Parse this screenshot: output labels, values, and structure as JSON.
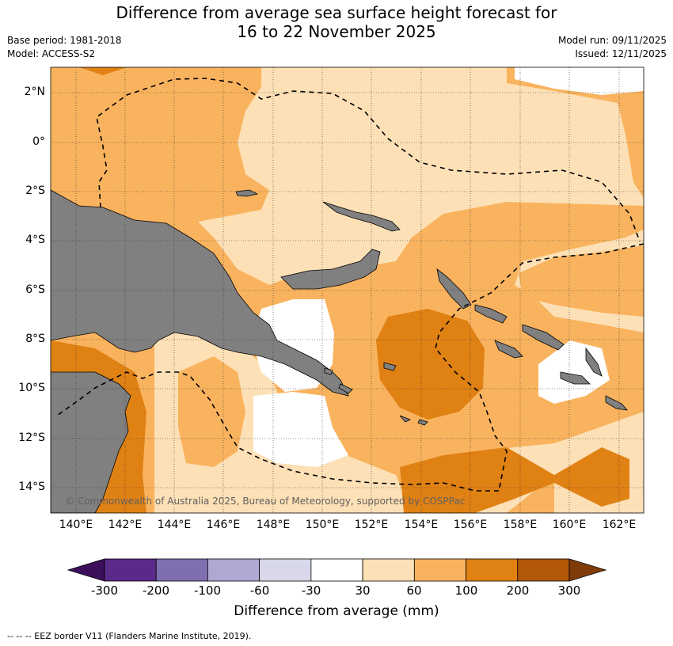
{
  "title_line1": "Difference from average sea surface height forecast for",
  "title_line2": "16 to 22 November 2025",
  "base_period": "Base period: 1981-2018",
  "model": "Model: ACCESS-S2",
  "model_run": "Model run: 09/11/2025",
  "issued": "Issued: 12/11/2025",
  "copyright": "© Commonwealth of Australia 2025, Bureau of Meteorology, supported by COSPPac",
  "lat_labels": [
    "2°N",
    "0°",
    "2°S",
    "4°S",
    "6°S",
    "8°S",
    "10°S",
    "12°S",
    "14°S"
  ],
  "lon_labels": [
    "140°E",
    "142°E",
    "144°E",
    "146°E",
    "148°E",
    "150°E",
    "152°E",
    "154°E",
    "156°E",
    "158°E",
    "160°E",
    "162°E"
  ],
  "colorbar": {
    "label": "Difference from average (mm)",
    "ticks": [
      "-300",
      "-200",
      "-100",
      "-60",
      "-30",
      "30",
      "60",
      "100",
      "200",
      "300"
    ],
    "colors": [
      "#3b0f5a",
      "#5a2a8a",
      "#7f6fb0",
      "#b0a8d2",
      "#d8d8ea",
      "#ffffff",
      "#fde0b6",
      "#f9b35e",
      "#e08114",
      "#b35806",
      "#7f3b08"
    ]
  },
  "colors": {
    "land": "#808080",
    "c30_60": "#fde0b6",
    "c60_100": "#f9b35e",
    "c100_200": "#e08114",
    "neutral": "#ffffff"
  },
  "footnote": "--  --  -- EEZ border V11 (Flanders Marine Institute, 2019)."
}
